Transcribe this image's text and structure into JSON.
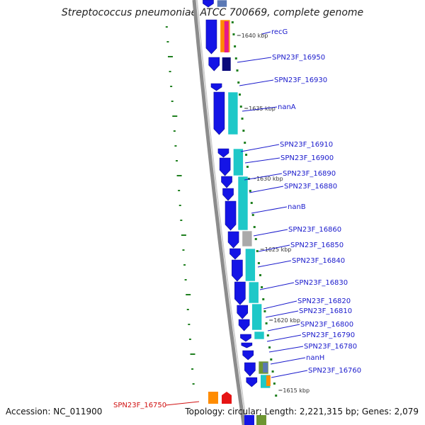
{
  "title": "Streptococcus pneumoniae ATCC 700669, complete genome",
  "footer": {
    "accession": "Accession: NC_011900",
    "summary": "Topology: circular; Length: 2,221,315 bp; Genes: 2,079"
  },
  "colors": {
    "backbone": "#8c8c8c",
    "gene_arrow": "#1414e6",
    "gene_arrow_dark": "#0a0a7a",
    "cog_cyan": "#1ec8c8",
    "cog_orange": "#ff8c00",
    "cog_magenta": "#e6198c",
    "cog_grey": "#aaaaaa",
    "cog_olive": "#6e9632",
    "cog_steel": "#5a78b4",
    "gene_highlight": "#e61414",
    "label_blue": "#1a1acc",
    "label_red": "#d01010",
    "gc_tick": "#208020"
  },
  "kbp_markers": [
    "1640 kbp",
    "1635 kbp",
    "1630 kbp",
    "1625 kbp",
    "1620 kbp",
    "1615 kbp"
  ],
  "gene_labels": [
    "recG",
    "SPN23F_16950",
    "SPN23F_16930",
    "nanA",
    "SPN23F_16910",
    "SPN23F_16900",
    "SPN23F_16890",
    "SPN23F_16880",
    "nanB",
    "SPN23F_16860",
    "SPN23F_16850",
    "SPN23F_16840",
    "SPN23F_16830",
    "SPN23F_16820",
    "SPN23F_16810",
    "SPN23F_16800",
    "SPN23F_16790",
    "SPN23F_16780",
    "nanH",
    "SPN23F_16760",
    "SPN23F_16750"
  ],
  "highlighted_gene": "SPN23F_16750"
}
